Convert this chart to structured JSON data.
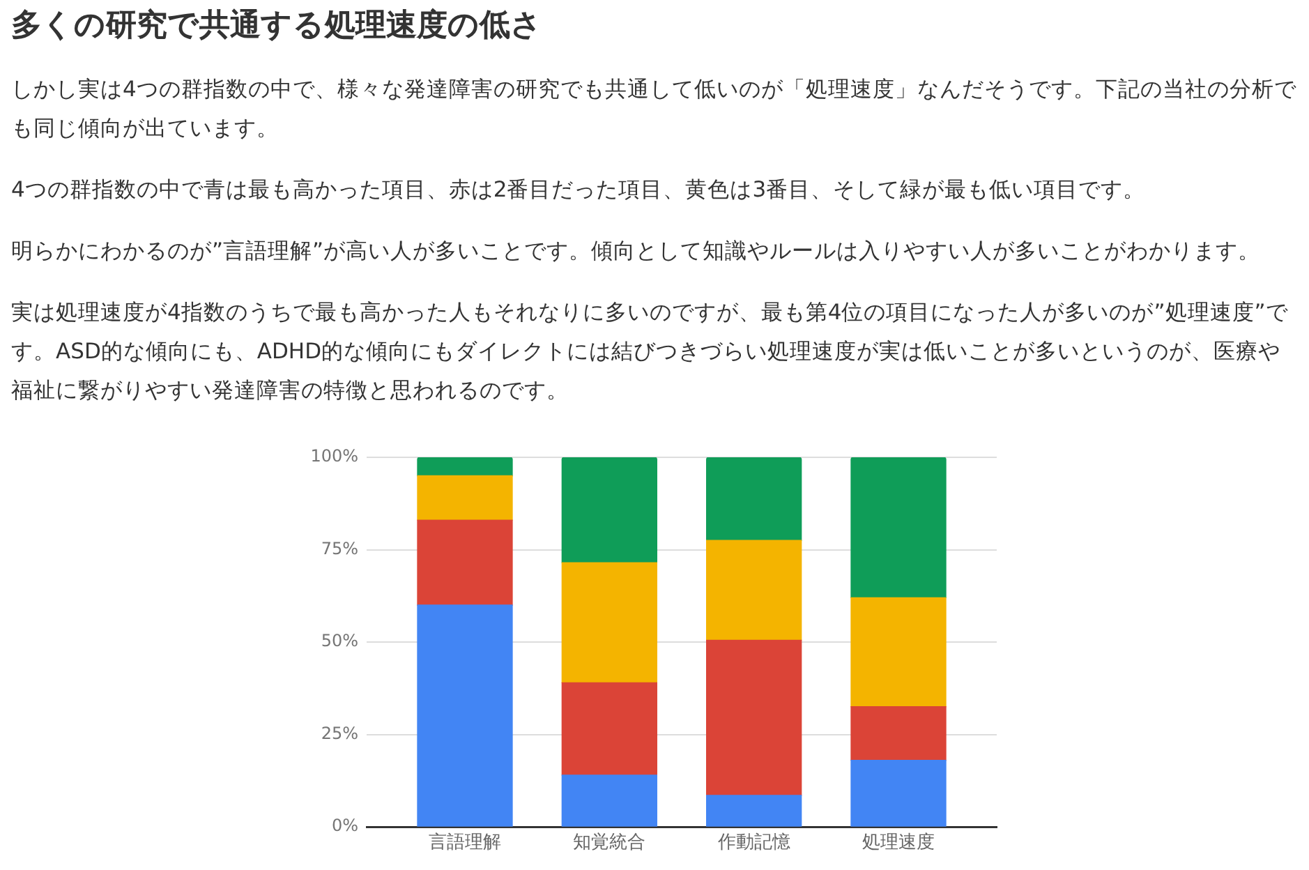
{
  "chart_data": {
    "type": "bar",
    "title": "多くの研究で共通する処理速度の低さ",
    "annotations": [
      "しかし実は4つの群指数の中で、様々な発達障害の研究でも共通して低いのが「処理速度」なんだそうです。下記の当社の分析でも同じ傾向が出ています。",
      "4つの群指数の中で青は最も高かった項目、赤は2番目だった項目、黄色は3番目、そして緑が最も低い項目です。",
      "明らかにわかるのが”言語理解”が高い人が多いことです。傾向として知識やルールは入りやすい人が多いことがわかります。",
      "実は処理速度が4指数のうちで最も高かった人もそれなりに多いのですが、最も第4位の項目になった人が多いのが”処理速度”です。ASD的な傾向にも、ADHD的な傾向にもダイレクトには結びつきづらい処理速度が実は低いことが多いというのが、医療や福祉に繋がりやすい発達障害の特徴と思われるのです。"
    ],
    "categories": [
      "言語理解",
      "知覚統合",
      "作動記憶",
      "処理速度"
    ],
    "series": [
      {
        "color": "#4285f4",
        "values": [
          60,
          14,
          8.5,
          18
        ]
      },
      {
        "color": "#db4437",
        "values": [
          23,
          25,
          42,
          14.5
        ]
      },
      {
        "color": "#f4b400",
        "values": [
          12,
          32.5,
          27,
          29.5
        ]
      },
      {
        "color": "#0f9d58",
        "values": [
          5,
          28.5,
          22.5,
          38
        ]
      }
    ],
    "stacked": true,
    "ylim": [
      0,
      100
    ],
    "yticks": [
      {
        "value": 0,
        "label": "0%"
      },
      {
        "value": 25,
        "label": "25%"
      },
      {
        "value": 50,
        "label": "50%"
      },
      {
        "value": 75,
        "label": "75%"
      },
      {
        "value": 100,
        "label": "100%"
      }
    ],
    "grid": "y",
    "legend": false
  }
}
